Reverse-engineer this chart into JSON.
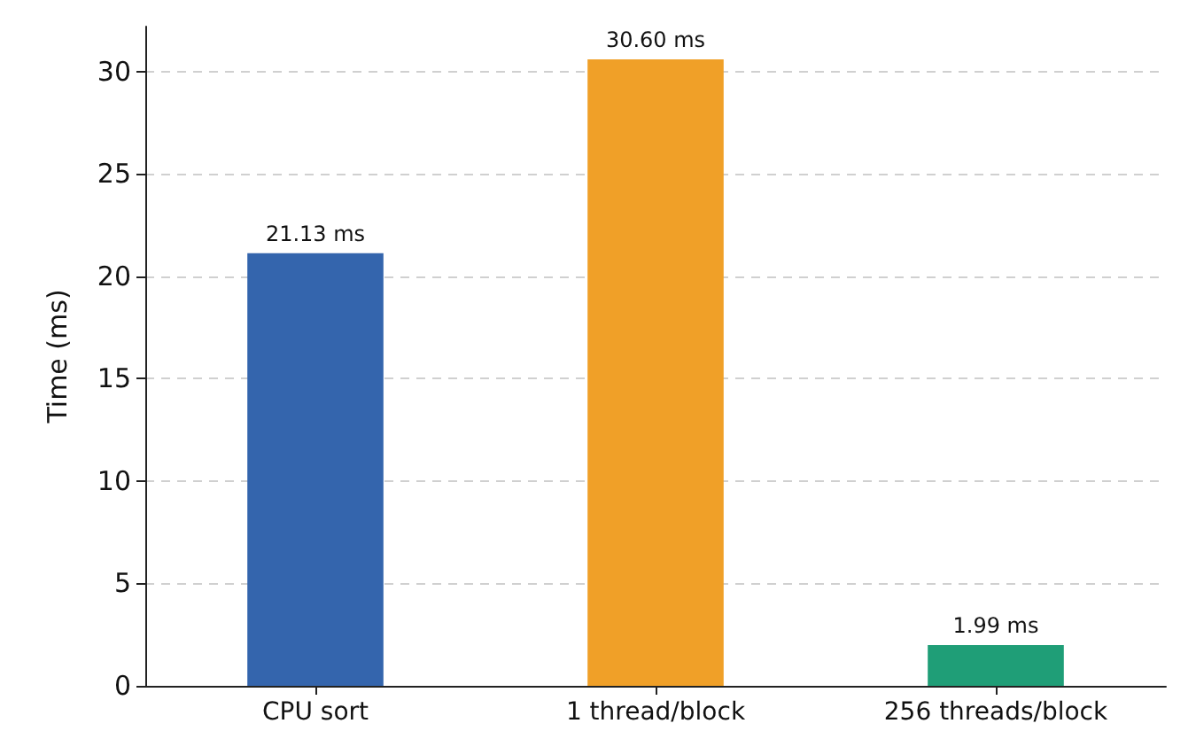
{
  "chart_data": {
    "type": "bar",
    "ylabel": "Time (ms)",
    "categories": [
      "CPU sort",
      "1 thread/block",
      "256 threads/block"
    ],
    "values": [
      21.13,
      30.6,
      1.99
    ],
    "colors": [
      "#3465ad",
      "#f0a028",
      "#1f9e77"
    ],
    "value_labels": [
      "21.13 ms",
      "30.60 ms",
      "1.99 ms"
    ],
    "ylim": [
      0,
      32.2
    ],
    "yticks": [
      0,
      5,
      10,
      15,
      20,
      25,
      30
    ],
    "grid": "y"
  }
}
